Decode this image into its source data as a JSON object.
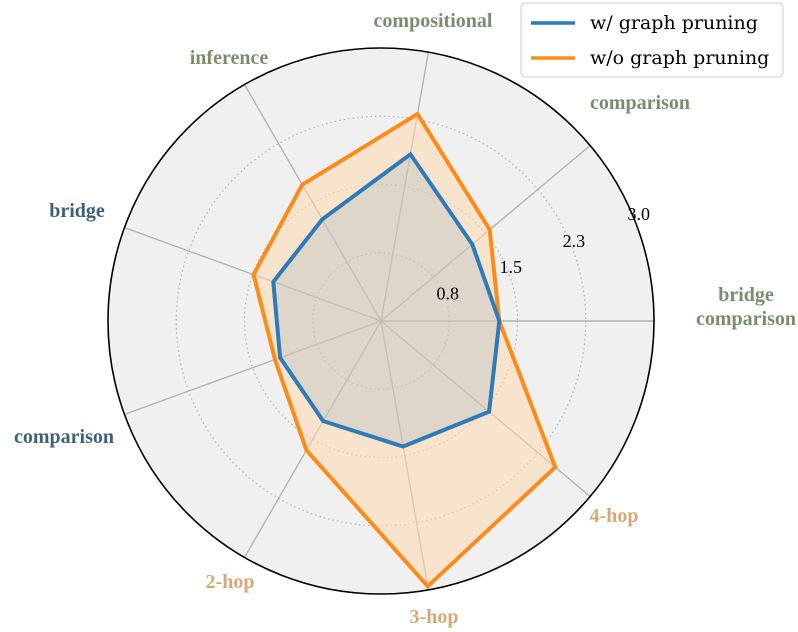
{
  "chart_data": {
    "type": "radar",
    "axes": [
      {
        "label": [
          "bridge",
          "comparison"
        ],
        "color": "#7a8c6e"
      },
      {
        "label": [
          "comparison"
        ],
        "color": "#7a8c6e"
      },
      {
        "label": [
          "compositional"
        ],
        "color": "#7a8c6e"
      },
      {
        "label": [
          "inference"
        ],
        "color": "#7a8c6e"
      },
      {
        "label": [
          "bridge"
        ],
        "color": "#3f6278"
      },
      {
        "label": [
          "comparison"
        ],
        "color": "#3f6278"
      },
      {
        "label": [
          "2-hop"
        ],
        "color": "#d4a97a"
      },
      {
        "label": [
          "3-hop"
        ],
        "color": "#d4a97a"
      },
      {
        "label": [
          "4-hop"
        ],
        "color": "#d4a97a"
      }
    ],
    "radial_ticks": [
      "0.8",
      "1.5",
      "2.3",
      "3.0"
    ],
    "radial_tick_values": [
      0.75,
      1.5,
      2.25,
      3.0
    ],
    "rmax": 3.0,
    "grid": true,
    "legend_position": "top-right",
    "series": [
      {
        "name": "w/ graph pruning",
        "color": "#2f7ab8",
        "fill": "#2f7ab8",
        "values": [
          1.3,
          1.31,
          1.86,
          1.29,
          1.26,
          1.18,
          1.27,
          1.4,
          1.55
        ]
      },
      {
        "name": "w/o graph pruning",
        "color": "#ff8c1a",
        "fill": "#ffd9b0",
        "values": [
          1.3,
          1.56,
          2.31,
          1.73,
          1.49,
          1.24,
          1.64,
          2.96,
          2.5
        ]
      }
    ]
  }
}
